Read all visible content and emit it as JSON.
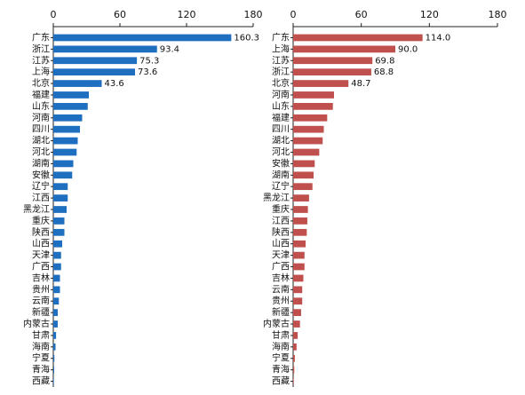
{
  "chart_data": [
    {
      "type": "hbar",
      "color": "#1f6fc1",
      "categories": [
        "广东",
        "浙江",
        "江苏",
        "上海",
        "北京",
        "福建",
        "山东",
        "河南",
        "四川",
        "湖北",
        "河北",
        "湖南",
        "安徽",
        "辽宁",
        "江西",
        "黑龙江",
        "重庆",
        "陕西",
        "山西",
        "天津",
        "广西",
        "吉林",
        "贵州",
        "云南",
        "新疆",
        "内蒙古",
        "甘肃",
        "海南",
        "宁夏",
        "青海",
        "西藏"
      ],
      "values": [
        160.3,
        93.4,
        75.3,
        73.6,
        43.6,
        32,
        31,
        26,
        24,
        22,
        21,
        18,
        17,
        13,
        13,
        12,
        10,
        10,
        8,
        7,
        7,
        6,
        6,
        5,
        4,
        4,
        2.5,
        2,
        1,
        0.8,
        0.5
      ],
      "value_labels": [
        "160.3",
        "93.4",
        "75.3",
        "73.6",
        "43.6",
        null,
        null,
        null,
        null,
        null,
        null,
        null,
        null,
        null,
        null,
        null,
        null,
        null,
        null,
        null,
        null,
        null,
        null,
        null,
        null,
        null,
        null,
        null,
        null,
        null,
        null
      ],
      "xlim": [
        0,
        180
      ],
      "xticks": [
        0,
        60,
        120,
        180
      ]
    },
    {
      "type": "hbar",
      "color": "#c0504d",
      "categories": [
        "广东",
        "上海",
        "江苏",
        "浙江",
        "北京",
        "河南",
        "山东",
        "福建",
        "四川",
        "湖北",
        "河北",
        "安徽",
        "湖南",
        "辽宁",
        "黑龙江",
        "重庆",
        "江西",
        "陕西",
        "山西",
        "天津",
        "广西",
        "吉林",
        "云南",
        "贵州",
        "新疆",
        "内蒙古",
        "甘肃",
        "海南",
        "宁夏",
        "青海",
        "西藏"
      ],
      "values": [
        114.0,
        90.0,
        69.8,
        68.8,
        48.7,
        36,
        35,
        30,
        27,
        26,
        23,
        19,
        18,
        17,
        14,
        13,
        12.5,
        12,
        11,
        10,
        10,
        9,
        8,
        8,
        7,
        6,
        4,
        3,
        1.5,
        1,
        0.5
      ],
      "value_labels": [
        "114.0",
        "90.0",
        "69.8",
        "68.8",
        "48.7",
        null,
        null,
        null,
        null,
        null,
        null,
        null,
        null,
        null,
        null,
        null,
        null,
        null,
        null,
        null,
        null,
        null,
        null,
        null,
        null,
        null,
        null,
        null,
        null,
        null,
        null
      ],
      "xlim": [
        0,
        180
      ],
      "xticks": [
        0,
        60,
        120,
        180
      ]
    }
  ]
}
